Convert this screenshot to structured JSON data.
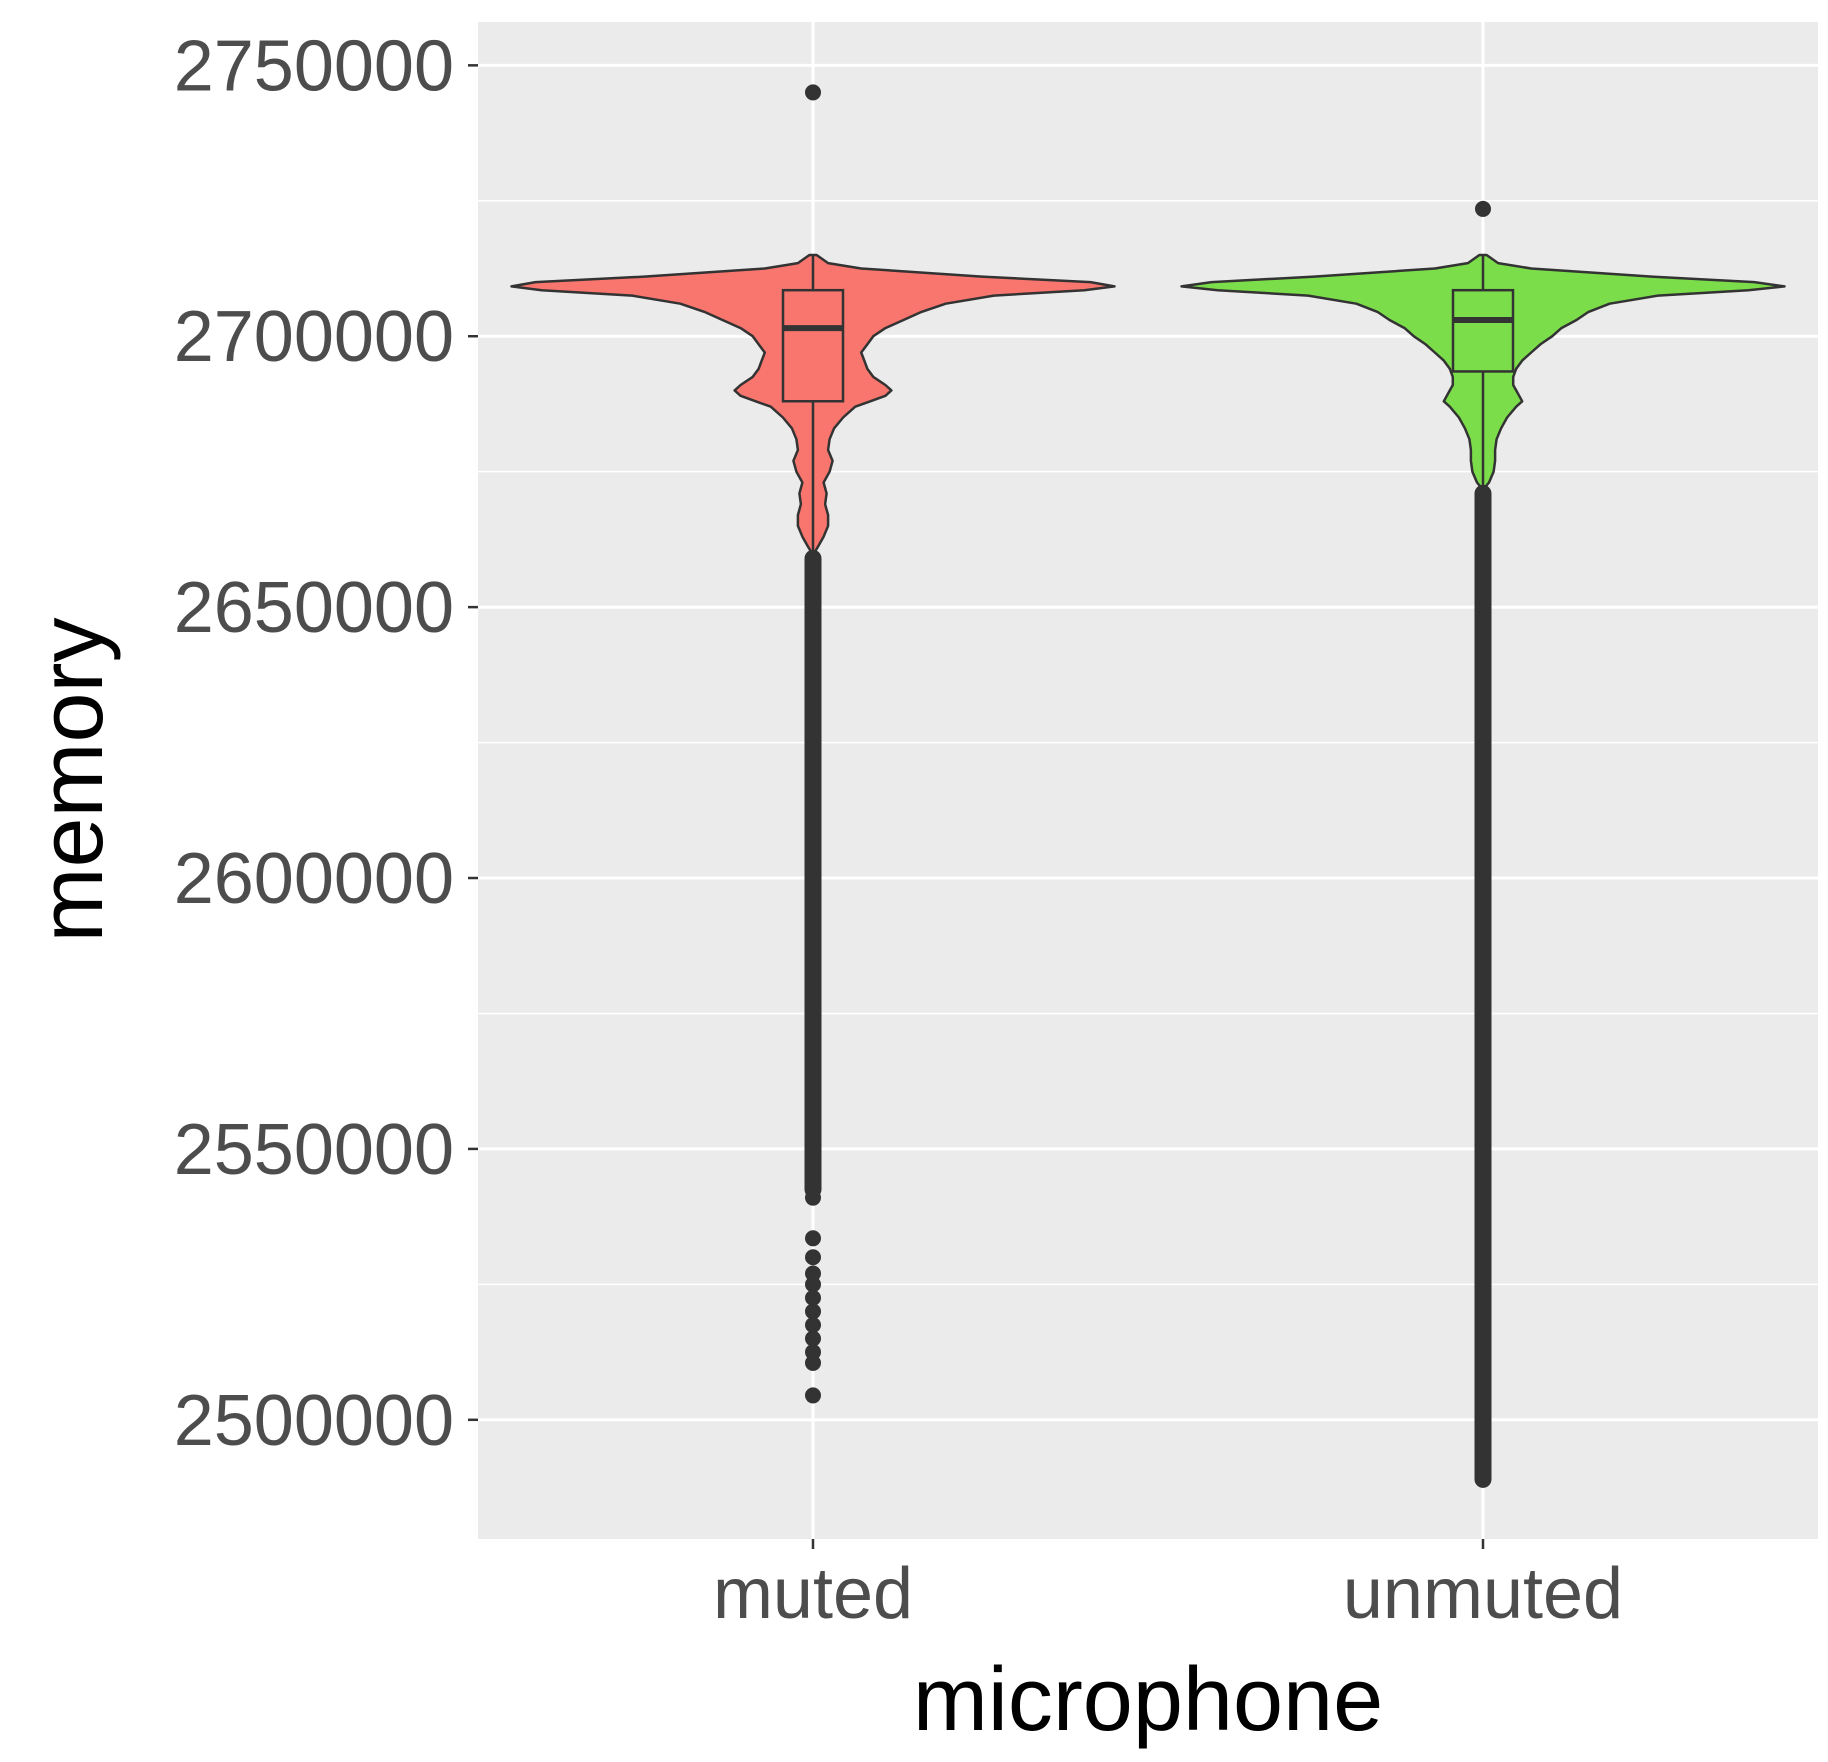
{
  "chart_data": {
    "type": "violin",
    "xlabel": "microphone",
    "ylabel": "memory",
    "categories": [
      "muted",
      "unmuted"
    ],
    "ylim": [
      2478000,
      2758000
    ],
    "y_ticks": [
      2500000,
      2550000,
      2600000,
      2650000,
      2700000,
      2750000
    ],
    "y_tick_labels": [
      "2500000",
      "2550000",
      "2600000",
      "2650000",
      "2700000",
      "2750000"
    ],
    "grid": true,
    "legend": "none",
    "panel_background": "#ebebeb",
    "gridline_color": "#ffffff",
    "outline_color": "#333333",
    "series": [
      {
        "category": "muted",
        "fill": "#F8766D",
        "box": {
          "whisker_low": 2660000,
          "q1": 2688000,
          "median": 2701500,
          "q3": 2708500,
          "whisker_high": 2715000
        },
        "outlier_band": [
          2542500,
          2659000
        ],
        "outliers": [
          2745000,
          2541000,
          2533500,
          2530000,
          2527000,
          2525000,
          2522500,
          2520000,
          2517500,
          2515000,
          2512500,
          2510500,
          2504500
        ],
        "density": [
          [
            2715000,
            0.012
          ],
          [
            2713500,
            0.05
          ],
          [
            2712500,
            0.16
          ],
          [
            2711000,
            0.56
          ],
          [
            2710000,
            0.92
          ],
          [
            2709200,
            1.0
          ],
          [
            2708500,
            0.9
          ],
          [
            2707500,
            0.6
          ],
          [
            2706000,
            0.44
          ],
          [
            2704500,
            0.36
          ],
          [
            2703000,
            0.3
          ],
          [
            2701500,
            0.24
          ],
          [
            2700000,
            0.2
          ],
          [
            2698500,
            0.18
          ],
          [
            2697000,
            0.16
          ],
          [
            2695500,
            0.17
          ],
          [
            2694000,
            0.18
          ],
          [
            2692500,
            0.2
          ],
          [
            2691000,
            0.24
          ],
          [
            2690000,
            0.26
          ],
          [
            2689000,
            0.24
          ],
          [
            2688000,
            0.19
          ],
          [
            2687000,
            0.14
          ],
          [
            2685000,
            0.1
          ],
          [
            2683000,
            0.07
          ],
          [
            2681000,
            0.055
          ],
          [
            2679000,
            0.05
          ],
          [
            2677000,
            0.065
          ],
          [
            2675000,
            0.055
          ],
          [
            2673000,
            0.035
          ],
          [
            2671000,
            0.045
          ],
          [
            2669000,
            0.04
          ],
          [
            2667000,
            0.05
          ],
          [
            2665000,
            0.05
          ],
          [
            2663000,
            0.035
          ],
          [
            2661000,
            0.015
          ],
          [
            2660000,
            0.004
          ]
        ]
      },
      {
        "category": "unmuted",
        "fill": "#7CDD4B",
        "box": {
          "whisker_low": 2672000,
          "q1": 2693500,
          "median": 2703000,
          "q3": 2708500,
          "whisker_high": 2715000
        },
        "outlier_band": [
          2489000,
          2671000
        ],
        "outliers": [
          2723500,
          2648000,
          2646500,
          2642500,
          2641000,
          2489000
        ],
        "density": [
          [
            2715000,
            0.012
          ],
          [
            2713500,
            0.05
          ],
          [
            2712500,
            0.16
          ],
          [
            2711000,
            0.56
          ],
          [
            2710000,
            0.9
          ],
          [
            2709200,
            1.0
          ],
          [
            2708500,
            0.88
          ],
          [
            2707500,
            0.58
          ],
          [
            2706000,
            0.42
          ],
          [
            2704500,
            0.35
          ],
          [
            2703000,
            0.31
          ],
          [
            2701500,
            0.26
          ],
          [
            2700000,
            0.23
          ],
          [
            2698500,
            0.19
          ],
          [
            2697000,
            0.16
          ],
          [
            2695500,
            0.13
          ],
          [
            2694000,
            0.11
          ],
          [
            2692500,
            0.1
          ],
          [
            2691000,
            0.1
          ],
          [
            2690000,
            0.11
          ],
          [
            2689000,
            0.12
          ],
          [
            2688000,
            0.13
          ],
          [
            2687000,
            0.11
          ],
          [
            2685000,
            0.08
          ],
          [
            2683000,
            0.06
          ],
          [
            2681000,
            0.045
          ],
          [
            2679000,
            0.04
          ],
          [
            2677000,
            0.04
          ],
          [
            2675000,
            0.035
          ],
          [
            2673000,
            0.02
          ],
          [
            2672000,
            0.005
          ]
        ]
      }
    ]
  }
}
